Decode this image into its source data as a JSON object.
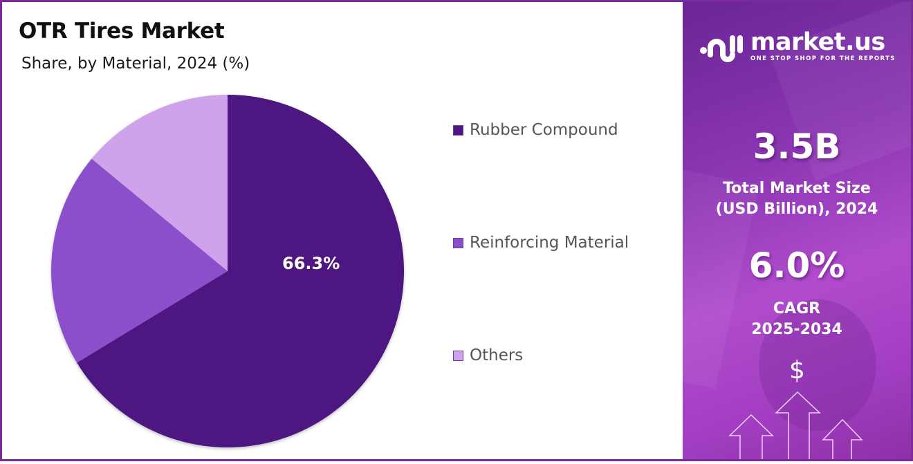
{
  "chart": {
    "title": "OTR Tires Market",
    "subtitle": "Share, by Material, 2024 (%)",
    "highlight_label": "66.3%"
  },
  "legend": [
    {
      "label": "Rubber Compound",
      "color": "#4e1880"
    },
    {
      "label": "Reinforcing Material",
      "color": "#8b4fcb"
    },
    {
      "label": "Others",
      "color": "#cfa2ec"
    }
  ],
  "panel": {
    "brand": "market.us",
    "tagline": "ONE STOP SHOP FOR THE REPORTS",
    "market_size_value": "3.5B",
    "market_size_label_line1": "Total Market Size",
    "market_size_label_line2": "(USD Billion), 2024",
    "cagr_value": "6.0%",
    "cagr_label_line1": "CAGR",
    "cagr_label_line2": "2025-2034",
    "dollar_symbol": "$"
  },
  "colors": {
    "border": "#7b2a9c",
    "rubber": "#4e1880",
    "reinforcing": "#8b4fcb",
    "others": "#cfa2ec"
  },
  "chart_data": {
    "type": "pie",
    "title": "OTR Tires Market",
    "subtitle": "Share, by Material, 2024 (%)",
    "categories": [
      "Rubber Compound",
      "Reinforcing Material",
      "Others"
    ],
    "values": [
      66.3,
      19.7,
      14.0
    ],
    "labeled_values": {
      "Rubber Compound": 66.3
    },
    "legend_position": "right",
    "start_angle": "12 o'clock, clockwise"
  }
}
